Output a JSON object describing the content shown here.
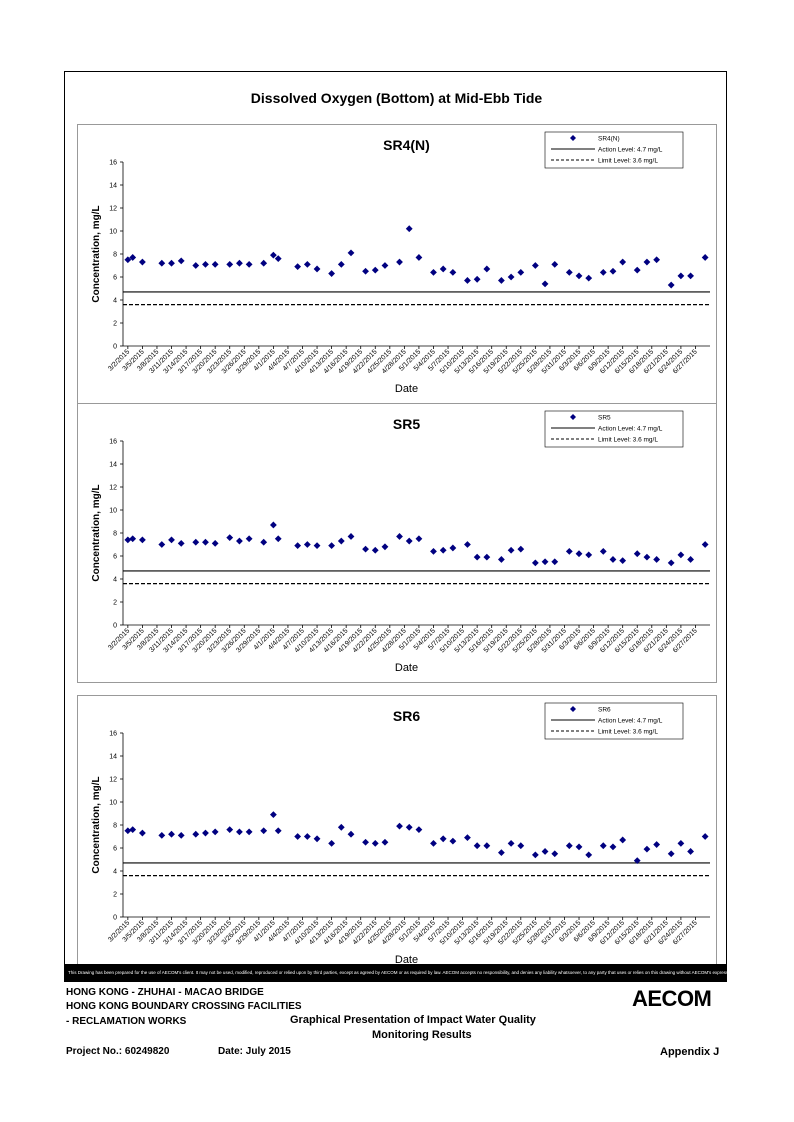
{
  "page_title": "Dissolved Oxygen (Bottom) at Mid-Ebb Tide",
  "chart_data": [
    {
      "type": "scatter",
      "title": "SR4(N)",
      "xlabel": "Date",
      "ylabel": "Concentration, mg/L",
      "ylim": [
        0,
        16
      ],
      "yticks": [
        0,
        2,
        4,
        6,
        8,
        10,
        12,
        14,
        16
      ],
      "x_tick_labels": [
        "3/2/2015",
        "3/5/2015",
        "3/8/2015",
        "3/11/2015",
        "3/14/2015",
        "3/17/2015",
        "3/20/2015",
        "3/23/2015",
        "3/26/2015",
        "3/29/2015",
        "4/1/2015",
        "4/4/2015",
        "4/7/2015",
        "4/10/2015",
        "4/13/2015",
        "4/16/2015",
        "4/19/2015",
        "4/22/2015",
        "4/25/2015",
        "4/28/2015",
        "5/1/2015",
        "5/4/2015",
        "5/7/2015",
        "5/10/2015",
        "5/13/2015",
        "5/16/2015",
        "5/19/2015",
        "5/22/2015",
        "5/25/2015",
        "5/28/2015",
        "5/31/2015",
        "6/3/2015",
        "6/6/2015",
        "6/9/2015",
        "6/12/2015",
        "6/15/2015",
        "6/18/2015",
        "6/21/2015",
        "6/24/2015",
        "6/27/2015"
      ],
      "legend_position": "top-right",
      "grid": false,
      "series": [
        {
          "name": "SR4(N)",
          "marker": "diamond",
          "color": "#000080",
          "x": [
            "3/2/2015",
            "3/3/2015",
            "3/5/2015",
            "3/9/2015",
            "3/11/2015",
            "3/13/2015",
            "3/16/2015",
            "3/18/2015",
            "3/20/2015",
            "3/23/2015",
            "3/25/2015",
            "3/27/2015",
            "3/30/2015",
            "4/1/2015",
            "4/2/2015",
            "4/6/2015",
            "4/8/2015",
            "4/10/2015",
            "4/13/2015",
            "4/15/2015",
            "4/17/2015",
            "4/20/2015",
            "4/22/2015",
            "4/24/2015",
            "4/27/2015",
            "4/29/2015",
            "5/1/2015",
            "5/4/2015",
            "5/6/2015",
            "5/8/2015",
            "5/11/2015",
            "5/13/2015",
            "5/15/2015",
            "5/18/2015",
            "5/20/2015",
            "5/22/2015",
            "5/25/2015",
            "5/27/2015",
            "5/29/2015",
            "6/1/2015",
            "6/3/2015",
            "6/5/2015",
            "6/8/2015",
            "6/10/2015",
            "6/12/2015",
            "6/15/2015",
            "6/17/2015",
            "6/19/2015",
            "6/22/2015",
            "6/24/2015",
            "6/26/2015",
            "6/29/2015"
          ],
          "y": [
            7.5,
            7.7,
            7.3,
            7.2,
            7.2,
            7.4,
            7.0,
            7.1,
            7.1,
            7.1,
            7.2,
            7.1,
            7.2,
            7.9,
            7.6,
            6.9,
            7.1,
            6.7,
            6.3,
            7.1,
            8.1,
            6.5,
            6.6,
            7.0,
            7.3,
            10.2,
            7.7,
            6.4,
            6.7,
            6.4,
            5.7,
            5.8,
            6.7,
            5.7,
            6.0,
            6.4,
            7.0,
            5.4,
            7.1,
            6.4,
            6.1,
            5.9,
            6.4,
            6.5,
            7.3,
            6.6,
            7.3,
            7.5,
            5.3,
            6.1,
            6.1,
            7.7
          ]
        },
        {
          "name": "Action Level: 4.7 mg/L",
          "line": "solid",
          "value": 4.7
        },
        {
          "name": "Limit Level: 3.6 mg/L",
          "line": "dashed",
          "value": 3.6
        }
      ]
    },
    {
      "type": "scatter",
      "title": "SR5",
      "xlabel": "Date",
      "ylabel": "Concentration, mg/L",
      "ylim": [
        0,
        16
      ],
      "yticks": [
        0,
        2,
        4,
        6,
        8,
        10,
        12,
        14,
        16
      ],
      "x_tick_labels": [
        "3/2/2015",
        "3/5/2015",
        "3/8/2015",
        "3/11/2015",
        "3/14/2015",
        "3/17/2015",
        "3/20/2015",
        "3/23/2015",
        "3/26/2015",
        "3/29/2015",
        "4/1/2015",
        "4/4/2015",
        "4/7/2015",
        "4/10/2015",
        "4/13/2015",
        "4/16/2015",
        "4/19/2015",
        "4/22/2015",
        "4/25/2015",
        "4/28/2015",
        "5/1/2015",
        "5/4/2015",
        "5/7/2015",
        "5/10/2015",
        "5/13/2015",
        "5/16/2015",
        "5/19/2015",
        "5/22/2015",
        "5/25/2015",
        "5/28/2015",
        "5/31/2015",
        "6/3/2015",
        "6/6/2015",
        "6/9/2015",
        "6/12/2015",
        "6/15/2015",
        "6/18/2015",
        "6/21/2015",
        "6/24/2015",
        "6/27/2015"
      ],
      "legend_position": "top-right",
      "grid": false,
      "series": [
        {
          "name": "SR5",
          "marker": "diamond",
          "color": "#000080",
          "x": [
            "3/2/2015",
            "3/3/2015",
            "3/5/2015",
            "3/9/2015",
            "3/11/2015",
            "3/13/2015",
            "3/16/2015",
            "3/18/2015",
            "3/20/2015",
            "3/23/2015",
            "3/25/2015",
            "3/27/2015",
            "3/30/2015",
            "4/1/2015",
            "4/2/2015",
            "4/6/2015",
            "4/8/2015",
            "4/10/2015",
            "4/13/2015",
            "4/15/2015",
            "4/17/2015",
            "4/20/2015",
            "4/22/2015",
            "4/24/2015",
            "4/27/2015",
            "4/29/2015",
            "5/1/2015",
            "5/4/2015",
            "5/6/2015",
            "5/8/2015",
            "5/11/2015",
            "5/13/2015",
            "5/15/2015",
            "5/18/2015",
            "5/20/2015",
            "5/22/2015",
            "5/25/2015",
            "5/27/2015",
            "5/29/2015",
            "6/1/2015",
            "6/3/2015",
            "6/5/2015",
            "6/8/2015",
            "6/10/2015",
            "6/12/2015",
            "6/15/2015",
            "6/17/2015",
            "6/19/2015",
            "6/22/2015",
            "6/24/2015",
            "6/26/2015",
            "6/29/2015"
          ],
          "y": [
            7.4,
            7.5,
            7.4,
            7.0,
            7.4,
            7.1,
            7.2,
            7.2,
            7.1,
            7.6,
            7.3,
            7.5,
            7.2,
            8.7,
            7.5,
            6.9,
            7.0,
            6.9,
            6.9,
            7.3,
            7.7,
            6.6,
            6.5,
            6.8,
            7.7,
            7.3,
            7.5,
            6.4,
            6.5,
            6.7,
            7.0,
            5.9,
            5.9,
            5.7,
            6.5,
            6.6,
            5.4,
            5.5,
            5.5,
            6.4,
            6.2,
            6.1,
            6.4,
            5.7,
            5.6,
            6.2,
            5.9,
            5.7,
            5.4,
            6.1,
            5.7,
            7.0
          ]
        },
        {
          "name": "Action Level: 4.7 mg/L",
          "line": "solid",
          "value": 4.7
        },
        {
          "name": "Limit Level: 3.6 mg/L",
          "line": "dashed",
          "value": 3.6
        }
      ]
    },
    {
      "type": "scatter",
      "title": "SR6",
      "xlabel": "Date",
      "ylabel": "Concentration, mg/L",
      "ylim": [
        0,
        16
      ],
      "yticks": [
        0,
        2,
        4,
        6,
        8,
        10,
        12,
        14,
        16
      ],
      "x_tick_labels": [
        "3/2/2015",
        "3/5/2015",
        "3/8/2015",
        "3/11/2015",
        "3/14/2015",
        "3/17/2015",
        "3/20/2015",
        "3/23/2015",
        "3/26/2015",
        "3/29/2015",
        "4/1/2015",
        "4/4/2015",
        "4/7/2015",
        "4/10/2015",
        "4/13/2015",
        "4/16/2015",
        "4/19/2015",
        "4/22/2015",
        "4/25/2015",
        "4/28/2015",
        "5/1/2015",
        "5/4/2015",
        "5/7/2015",
        "5/10/2015",
        "5/13/2015",
        "5/16/2015",
        "5/19/2015",
        "5/22/2015",
        "5/25/2015",
        "5/28/2015",
        "5/31/2015",
        "6/3/2015",
        "6/6/2015",
        "6/9/2015",
        "6/12/2015",
        "6/15/2015",
        "6/18/2015",
        "6/21/2015",
        "6/24/2015",
        "6/27/2015"
      ],
      "legend_position": "top-right",
      "grid": false,
      "series": [
        {
          "name": "SR6",
          "marker": "diamond",
          "color": "#000080",
          "x": [
            "3/2/2015",
            "3/3/2015",
            "3/5/2015",
            "3/9/2015",
            "3/11/2015",
            "3/13/2015",
            "3/16/2015",
            "3/18/2015",
            "3/20/2015",
            "3/23/2015",
            "3/25/2015",
            "3/27/2015",
            "3/30/2015",
            "4/1/2015",
            "4/2/2015",
            "4/6/2015",
            "4/8/2015",
            "4/10/2015",
            "4/13/2015",
            "4/15/2015",
            "4/17/2015",
            "4/20/2015",
            "4/22/2015",
            "4/24/2015",
            "4/27/2015",
            "4/29/2015",
            "5/1/2015",
            "5/4/2015",
            "5/6/2015",
            "5/8/2015",
            "5/11/2015",
            "5/13/2015",
            "5/15/2015",
            "5/18/2015",
            "5/20/2015",
            "5/22/2015",
            "5/25/2015",
            "5/27/2015",
            "5/29/2015",
            "6/1/2015",
            "6/3/2015",
            "6/5/2015",
            "6/8/2015",
            "6/10/2015",
            "6/12/2015",
            "6/15/2015",
            "6/17/2015",
            "6/19/2015",
            "6/22/2015",
            "6/24/2015",
            "6/26/2015",
            "6/29/2015"
          ],
          "y": [
            7.5,
            7.6,
            7.3,
            7.1,
            7.2,
            7.1,
            7.2,
            7.3,
            7.4,
            7.6,
            7.4,
            7.4,
            7.5,
            8.9,
            7.5,
            7.0,
            7.0,
            6.8,
            6.4,
            7.8,
            7.2,
            6.5,
            6.4,
            6.5,
            7.9,
            7.8,
            7.6,
            6.4,
            6.8,
            6.6,
            6.9,
            6.2,
            6.2,
            5.6,
            6.4,
            6.2,
            5.4,
            5.7,
            5.5,
            6.2,
            6.1,
            5.4,
            6.2,
            6.1,
            6.7,
            4.9,
            5.9,
            6.3,
            5.5,
            6.4,
            5.7,
            7.0
          ]
        },
        {
          "name": "Action Level: 4.7 mg/L",
          "line": "solid",
          "value": 4.7
        },
        {
          "name": "Limit Level: 3.6 mg/L",
          "line": "dashed",
          "value": 3.6
        }
      ]
    }
  ],
  "disclaimer": "This Drawing has been prepared for the use of AECOM's client. It may not be used, modified, reproduced or relied upon by third parties, except as agreed by AECOM or as required by law. AECOM accepts no responsibility, and denies any liability whatsoever, to any party that uses or relies on this drawing without AECOM's express written consent.",
  "footer": {
    "line1": "HONG KONG - ZHUHAI - MACAO BRIDGE",
    "line2": "HONG KONG BOUNDARY CROSSING FACILITIES",
    "line3": "- RECLAMATION WORKS",
    "subtitle_line1": "Graphical Presentation of Impact Water Quality",
    "subtitle_line2": "Monitoring Results",
    "project_no": "Project No.: 60249820",
    "date": "Date: July 2015",
    "appendix": "Appendix J",
    "logo": "AECOM"
  }
}
